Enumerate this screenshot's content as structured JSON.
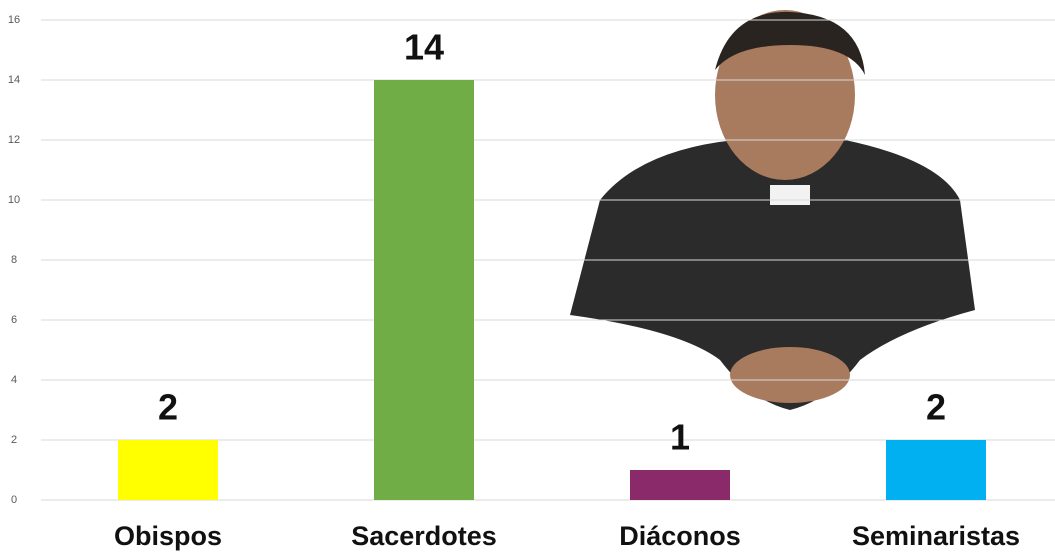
{
  "chart_data": {
    "type": "bar",
    "categories": [
      "Obispos",
      "Sacerdotes",
      "Diáconos",
      "Seminaristas"
    ],
    "values": [
      2,
      14,
      1,
      2
    ],
    "colors": [
      "#ffff00",
      "#70ad47",
      "#8b2a6b",
      "#00b0f0"
    ],
    "ylim": [
      0,
      16
    ],
    "yticks": [
      0,
      2,
      4,
      6,
      8,
      10,
      12,
      14,
      16
    ],
    "grid": true
  }
}
